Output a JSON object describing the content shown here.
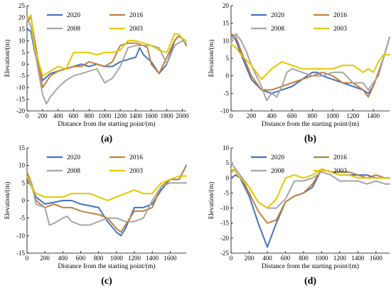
{
  "colors": {
    "2020": "#4472c4",
    "2016": "#c0803a",
    "2008": "#a6a6a6",
    "2003": "#e5c700"
  },
  "chart_data": [
    {
      "type": "line",
      "panel_label": "(a)",
      "xlabel": "Distance from the starting point/(m)",
      "ylabel": "Elevation/(m)",
      "xlim": [
        0,
        2050
      ],
      "ylim": [
        -20,
        25
      ],
      "xticks": [
        0,
        200,
        400,
        600,
        800,
        1000,
        1200,
        1400,
        1600,
        1800,
        2000
      ],
      "yticks": [
        -20,
        -15,
        -10,
        -5,
        0,
        5,
        10,
        15,
        20,
        25
      ],
      "legend": [
        "2020",
        "2016",
        "2008",
        "2003"
      ],
      "series": [
        {
          "name": "2020",
          "x": [
            0,
            50,
            100,
            200,
            300,
            400,
            500,
            600,
            700,
            800,
            900,
            1000,
            1100,
            1200,
            1300,
            1400,
            1450,
            1500,
            1600,
            1700,
            1800,
            1900,
            1950,
            2000,
            2050
          ],
          "y": [
            15,
            14,
            5,
            -7,
            -4,
            -3,
            -2,
            -1,
            0,
            -1,
            0,
            -1,
            -1,
            1,
            2,
            3,
            7,
            4,
            1,
            -4,
            0,
            10,
            12,
            11,
            8
          ]
        },
        {
          "name": "2016",
          "x": [
            0,
            50,
            100,
            200,
            300,
            400,
            500,
            600,
            700,
            800,
            900,
            1000,
            1100,
            1200,
            1300,
            1400,
            1500,
            1550,
            1600,
            1700,
            1800,
            1900,
            1950,
            2000,
            2050
          ],
          "y": [
            18,
            20,
            10,
            -10,
            -5,
            -3,
            -2,
            -1,
            -1,
            1,
            0,
            -1,
            1,
            8,
            9,
            9,
            8,
            7,
            0,
            -4,
            3,
            10,
            12,
            11,
            8
          ]
        },
        {
          "name": "2008",
          "x": [
            0,
            50,
            100,
            200,
            250,
            300,
            400,
            500,
            600,
            700,
            800,
            900,
            1000,
            1050,
            1100,
            1200,
            1300,
            1400,
            1500,
            1600,
            1700,
            1800,
            1900,
            2000,
            2050
          ],
          "y": [
            20,
            16,
            6,
            -13,
            -17,
            -14,
            -10,
            -7,
            -5,
            -4,
            -3,
            -2,
            -8,
            -7,
            -6,
            -1,
            7,
            8,
            8,
            8,
            7,
            0,
            8,
            10,
            9
          ]
        },
        {
          "name": "2003",
          "x": [
            0,
            50,
            100,
            200,
            300,
            400,
            500,
            600,
            700,
            800,
            900,
            1000,
            1100,
            1200,
            1300,
            1400,
            1500,
            1600,
            1700,
            1800,
            1900,
            1950,
            2000,
            2050
          ],
          "y": [
            19,
            21,
            7,
            -5,
            -3,
            -1,
            -2,
            5,
            5,
            5,
            4,
            5,
            5,
            6,
            10,
            10,
            9,
            8,
            6,
            5,
            13,
            13,
            11,
            10
          ]
        }
      ]
    },
    {
      "type": "line",
      "panel_label": "(b)",
      "xlabel": "Distance from the starting point/(m)",
      "ylabel": "Elevation/(m)",
      "xlim": [
        0,
        1560
      ],
      "ylim": [
        -10,
        20
      ],
      "xticks": [
        0,
        200,
        400,
        600,
        800,
        1000,
        1200,
        1400
      ],
      "yticks": [
        -10,
        -5,
        0,
        5,
        10,
        15,
        20
      ],
      "legend": [
        "2020",
        "2016",
        "2008",
        "2003"
      ],
      "series": [
        {
          "name": "2020",
          "x": [
            0,
            50,
            100,
            200,
            300,
            400,
            500,
            600,
            700,
            800,
            850,
            900,
            1000,
            1100,
            1200,
            1300,
            1350,
            1400,
            1500,
            1560
          ],
          "y": [
            12,
            10,
            6,
            -1,
            -4,
            -5,
            -4,
            -3,
            -1,
            1,
            1,
            0,
            -1,
            -2,
            -3,
            -4,
            -5,
            -3,
            5,
            11
          ]
        },
        {
          "name": "2016",
          "x": [
            0,
            50,
            100,
            200,
            300,
            400,
            500,
            600,
            700,
            800,
            900,
            1000,
            1100,
            1200,
            1300,
            1350,
            1400,
            1500,
            1560
          ],
          "y": [
            12,
            11,
            7,
            0,
            -4,
            -4,
            -3,
            -2,
            -1,
            0,
            1,
            0,
            -2,
            -2,
            -4,
            -6,
            -3,
            5,
            11
          ]
        },
        {
          "name": "2008",
          "x": [
            0,
            50,
            100,
            150,
            200,
            250,
            300,
            350,
            400,
            450,
            500,
            550,
            600,
            700,
            800,
            900,
            1000,
            1100,
            1200,
            1300,
            1350,
            1400,
            1450,
            1500,
            1560
          ],
          "y": [
            10,
            12,
            10,
            7,
            3,
            0,
            -3,
            -7,
            -5,
            -6,
            -3,
            1,
            2,
            1,
            0,
            0,
            1,
            1,
            -2,
            -2,
            -4,
            -2,
            0,
            5,
            11
          ]
        },
        {
          "name": "2003",
          "x": [
            0,
            50,
            100,
            200,
            300,
            400,
            500,
            600,
            700,
            800,
            900,
            1000,
            1100,
            1200,
            1300,
            1350,
            1400,
            1450,
            1500,
            1560
          ],
          "y": [
            9,
            8,
            6,
            3,
            -1,
            2,
            4,
            3,
            2,
            2,
            2,
            2,
            3,
            3,
            1,
            2,
            1,
            4,
            6,
            6
          ]
        }
      ]
    },
    {
      "type": "line",
      "panel_label": "(c)",
      "xlabel": "Distance from the starting point/(m)",
      "ylabel": "Elevation/(m)",
      "xlim": [
        0,
        1780
      ],
      "ylim": [
        -15,
        15
      ],
      "xticks": [
        0,
        200,
        400,
        600,
        800,
        1000,
        1200,
        1400,
        1600
      ],
      "yticks": [
        -15,
        -10,
        -5,
        0,
        5,
        10,
        15
      ],
      "legend": [
        "2020",
        "2016",
        "2008",
        "2003"
      ],
      "series": [
        {
          "name": "2020",
          "x": [
            0,
            50,
            100,
            200,
            300,
            400,
            500,
            600,
            700,
            800,
            900,
            1000,
            1050,
            1100,
            1200,
            1300,
            1400,
            1500,
            1600,
            1700,
            1780
          ],
          "y": [
            6,
            4,
            1,
            -1,
            -0.5,
            0,
            0,
            -1,
            -1.5,
            -2,
            -6,
            -9,
            -10,
            -8,
            -2,
            -2,
            -1,
            3,
            6,
            6,
            10
          ]
        },
        {
          "name": "2016",
          "x": [
            0,
            50,
            100,
            200,
            300,
            400,
            500,
            600,
            700,
            800,
            900,
            1000,
            1050,
            1100,
            1200,
            1300,
            1400,
            1500,
            1600,
            1700,
            1780
          ],
          "y": [
            8,
            5,
            0,
            -2,
            -1,
            -2,
            -2,
            -3,
            -3.5,
            -4,
            -5,
            -8,
            -9,
            -7,
            -3,
            -3,
            -2,
            4,
            6,
            6,
            10
          ]
        },
        {
          "name": "2008",
          "x": [
            0,
            50,
            100,
            200,
            250,
            300,
            400,
            450,
            500,
            600,
            700,
            800,
            900,
            1000,
            1100,
            1200,
            1300,
            1400,
            1500,
            1600,
            1700,
            1780
          ],
          "y": [
            7,
            5,
            -1,
            -2,
            -7,
            -6.5,
            -5,
            -4.5,
            -6,
            -7,
            -7,
            -6,
            -5,
            -5,
            -6,
            -6,
            -5,
            0,
            4,
            5,
            5,
            5
          ]
        },
        {
          "name": "2003",
          "x": [
            0,
            50,
            100,
            200,
            300,
            400,
            500,
            600,
            700,
            800,
            900,
            1000,
            1100,
            1200,
            1300,
            1400,
            1500,
            1600,
            1700,
            1780
          ],
          "y": [
            7,
            4,
            2,
            1,
            1,
            1,
            2,
            2,
            2,
            1,
            0,
            1,
            2,
            3,
            2,
            2,
            5,
            6,
            7,
            7
          ]
        }
      ]
    },
    {
      "type": "line",
      "panel_label": "(d)",
      "xlabel": "Distance from the starting point/(m)",
      "ylabel": "Elevation/(m)",
      "xlim": [
        0,
        1750
      ],
      "ylim": [
        -25,
        10
      ],
      "xticks": [
        0,
        200,
        400,
        600,
        800,
        1000,
        1200,
        1400,
        1600
      ],
      "yticks": [
        -25,
        -20,
        -15,
        -10,
        -5,
        0,
        5,
        10
      ],
      "legend": [
        "2020",
        "2016",
        "2008",
        "2003"
      ],
      "series": [
        {
          "name": "2020",
          "x": [
            0,
            50,
            100,
            200,
            300,
            400,
            500,
            600,
            700,
            800,
            900,
            1000,
            1100,
            1200,
            1300,
            1400,
            1500,
            1600,
            1700,
            1750
          ],
          "y": [
            0,
            1,
            0,
            -6,
            -15,
            -23,
            -15,
            -8,
            -6,
            -5,
            -3,
            3,
            2,
            1,
            1,
            1,
            1,
            0,
            0,
            0
          ]
        },
        {
          "name": "2016",
          "x": [
            0,
            50,
            100,
            200,
            300,
            400,
            500,
            600,
            700,
            800,
            900,
            1000,
            1100,
            1200,
            1300,
            1400,
            1500,
            1600,
            1700,
            1750
          ],
          "y": [
            2,
            3,
            1,
            -5,
            -11,
            -15,
            -14,
            -8,
            -6,
            -5,
            -2,
            3,
            2,
            2,
            2,
            1,
            0,
            1,
            0,
            0
          ]
        },
        {
          "name": "2008",
          "x": [
            0,
            50,
            100,
            200,
            300,
            400,
            500,
            600,
            700,
            800,
            900,
            1000,
            1100,
            1200,
            1300,
            1400,
            1500,
            1600,
            1700,
            1750
          ],
          "y": [
            5,
            3,
            1,
            -3,
            -8,
            -10,
            -10,
            -7,
            -1,
            -1,
            0,
            2,
            1,
            -1,
            -1,
            -1,
            -2,
            -1,
            -2,
            -2
          ]
        },
        {
          "name": "2003",
          "x": [
            0,
            50,
            100,
            200,
            300,
            400,
            500,
            600,
            700,
            800,
            900,
            1000,
            1100,
            1200,
            1300,
            1400,
            1500,
            1600,
            1700,
            1750
          ],
          "y": [
            3,
            2,
            0,
            -3,
            -8,
            -10,
            -7,
            0,
            1,
            0,
            1,
            3,
            2,
            1,
            1,
            0,
            0,
            0,
            0,
            0
          ]
        }
      ]
    }
  ]
}
